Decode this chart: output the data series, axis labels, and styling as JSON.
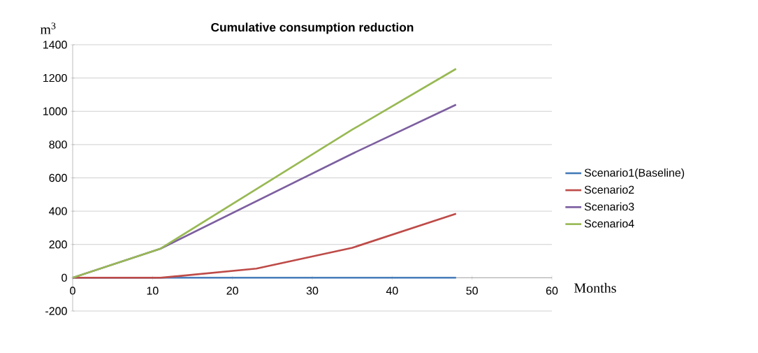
{
  "chart_data": {
    "type": "line",
    "title": "Cumulative consumption reduction",
    "xlabel": "Months",
    "ylabel": "m$^{3}$",
    "xlim": [
      0,
      60
    ],
    "xticks": [
      0,
      10,
      20,
      30,
      40,
      50,
      60
    ],
    "ylim": [
      -200,
      1400
    ],
    "yticks": [
      -200,
      0,
      200,
      400,
      600,
      800,
      1000,
      1200,
      1400
    ],
    "grid": "y",
    "legend": "right",
    "series": [
      {
        "name": "Scenario1(Baseline)",
        "color": "#4a7ebb",
        "x": [
          0,
          48
        ],
        "values": [
          0,
          0
        ]
      },
      {
        "name": "Scenario2",
        "color": "#be4b48",
        "x": [
          0,
          11,
          23,
          35,
          48
        ],
        "values": [
          0,
          0,
          55,
          180,
          385
        ]
      },
      {
        "name": "Scenario3",
        "color": "#7d5fa0",
        "x": [
          0,
          11,
          35,
          48
        ],
        "values": [
          0,
          175,
          745,
          1040
        ]
      },
      {
        "name": "Scenario4",
        "color": "#98b954",
        "x": [
          0,
          11,
          35,
          48
        ],
        "values": [
          0,
          175,
          890,
          1255
        ]
      }
    ]
  }
}
